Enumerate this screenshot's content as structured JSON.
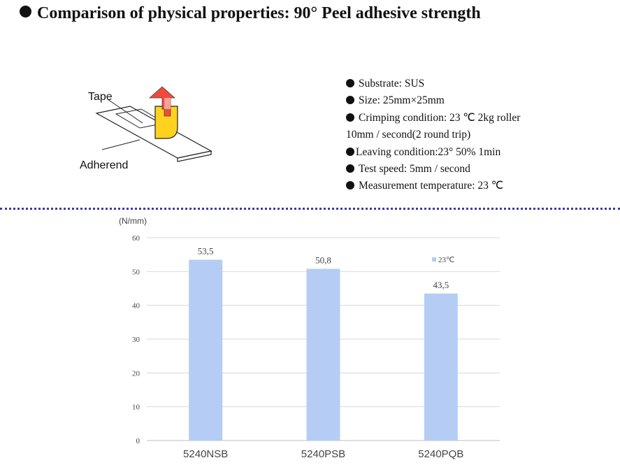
{
  "header": {
    "title": "Comparison of physical properties: 90°  Peel adhesive strength"
  },
  "diagram": {
    "tape_label": "Tape",
    "adherend_label": "Adherend",
    "colors": {
      "tape": "#ffd21f",
      "arrow": "#f04a3a",
      "arrow_tip": "#f7a296"
    }
  },
  "conditions": [
    "Substrate: SUS",
    "Size: 25mm×25mm",
    "Crimping condition: 23 ℃ 2kg roller",
    "10mm / second(2 round trip)",
    "Leaving condition:23°  50% 1min",
    "Test speed: 5mm / second",
    "Measurement temperature: 23 ℃"
  ],
  "chart_data": {
    "type": "bar",
    "categories": [
      "5240NSB",
      "5240PSB",
      "5240PQB"
    ],
    "series": [
      {
        "name": "23℃",
        "values": [
          53.5,
          50.8,
          43.5
        ],
        "labels": [
          "53,5",
          "50,8",
          "43,5"
        ]
      }
    ],
    "ylabel": "(N/mm)",
    "ylim": [
      0,
      60
    ],
    "yticks": [
      0,
      10,
      20,
      30,
      40,
      50,
      60
    ],
    "grid": true,
    "legend": "top-right",
    "colors": {
      "bar": "#b5cdf4",
      "grid": "#d9d9d9",
      "axis": "#bfbfbf"
    }
  }
}
